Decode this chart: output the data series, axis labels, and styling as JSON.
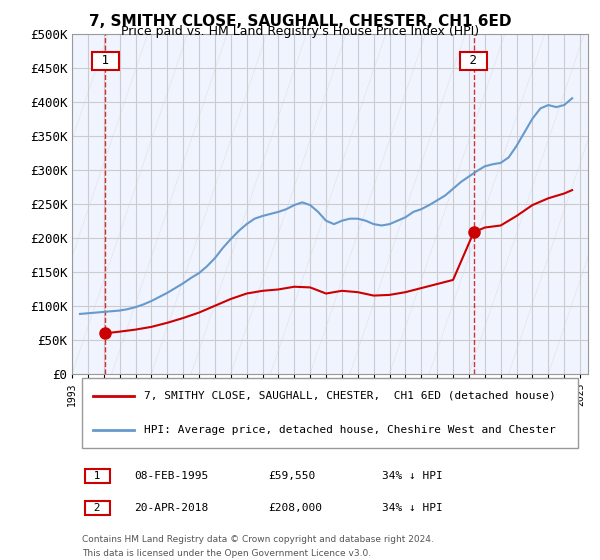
{
  "title": "7, SMITHY CLOSE, SAUGHALL, CHESTER, CH1 6ED",
  "subtitle": "Price paid vs. HM Land Registry's House Price Index (HPI)",
  "ylabel": "",
  "xlabel": "",
  "ylim": [
    0,
    500000
  ],
  "yticks": [
    0,
    50000,
    100000,
    150000,
    200000,
    250000,
    300000,
    350000,
    400000,
    450000,
    500000
  ],
  "ytick_labels": [
    "£0",
    "£50K",
    "£100K",
    "£150K",
    "£200K",
    "£250K",
    "£300K",
    "£350K",
    "£400K",
    "£450K",
    "£500K"
  ],
  "xlim_start": 1993.0,
  "xlim_end": 2025.5,
  "sale1_x": 1995.1,
  "sale1_y": 59550,
  "sale1_label": "1",
  "sale1_date": "08-FEB-1995",
  "sale1_price": "£59,550",
  "sale1_hpi": "34% ↓ HPI",
  "sale2_x": 2018.3,
  "sale2_y": 208000,
  "sale2_label": "2",
  "sale2_date": "20-APR-2018",
  "sale2_price": "£208,000",
  "sale2_hpi": "34% ↓ HPI",
  "property_line_color": "#cc0000",
  "hpi_line_color": "#6699cc",
  "vline_color": "#cc0000",
  "hatch_color": "#cccccc",
  "grid_color": "#cccccc",
  "background_color": "#ffffff",
  "plot_bg_color": "#f0f4ff",
  "legend_label1": "7, SMITHY CLOSE, SAUGHALL, CHESTER,  CH1 6ED (detached house)",
  "legend_label2": "HPI: Average price, detached house, Cheshire West and Chester",
  "footnote1": "Contains HM Land Registry data © Crown copyright and database right 2024.",
  "footnote2": "This data is licensed under the Open Government Licence v3.0.",
  "hpi_data_x": [
    1993.5,
    1994.0,
    1994.5,
    1995.0,
    1995.5,
    1996.0,
    1996.5,
    1997.0,
    1997.5,
    1998.0,
    1998.5,
    1999.0,
    1999.5,
    2000.0,
    2000.5,
    2001.0,
    2001.5,
    2002.0,
    2002.5,
    2003.0,
    2003.5,
    2004.0,
    2004.5,
    2005.0,
    2005.5,
    2006.0,
    2006.5,
    2007.0,
    2007.5,
    2008.0,
    2008.5,
    2009.0,
    2009.5,
    2010.0,
    2010.5,
    2011.0,
    2011.5,
    2012.0,
    2012.5,
    2013.0,
    2013.5,
    2014.0,
    2014.5,
    2015.0,
    2015.5,
    2016.0,
    2016.5,
    2017.0,
    2017.5,
    2018.0,
    2018.5,
    2019.0,
    2019.5,
    2020.0,
    2020.5,
    2021.0,
    2021.5,
    2022.0,
    2022.5,
    2023.0,
    2023.5,
    2024.0,
    2024.5
  ],
  "hpi_data_y": [
    88000,
    89000,
    90000,
    91000,
    92000,
    93000,
    95000,
    98000,
    102000,
    107000,
    113000,
    119000,
    126000,
    133000,
    141000,
    148000,
    158000,
    170000,
    185000,
    198000,
    210000,
    220000,
    228000,
    232000,
    235000,
    238000,
    242000,
    248000,
    252000,
    248000,
    238000,
    225000,
    220000,
    225000,
    228000,
    228000,
    225000,
    220000,
    218000,
    220000,
    225000,
    230000,
    238000,
    242000,
    248000,
    255000,
    262000,
    272000,
    282000,
    290000,
    298000,
    305000,
    308000,
    310000,
    318000,
    335000,
    355000,
    375000,
    390000,
    395000,
    392000,
    395000,
    405000
  ],
  "property_data_x": [
    1995.1,
    1996.0,
    1997.0,
    1998.0,
    1999.0,
    2000.0,
    2001.0,
    2002.0,
    2003.0,
    2004.0,
    2005.0,
    2006.0,
    2007.0,
    2008.0,
    2009.0,
    2010.0,
    2011.0,
    2012.0,
    2013.0,
    2014.0,
    2015.0,
    2016.0,
    2017.0,
    2018.3,
    2019.0,
    2020.0,
    2021.0,
    2022.0,
    2023.0,
    2024.0,
    2024.5
  ],
  "property_data_y": [
    59550,
    62000,
    65000,
    69000,
    75000,
    82000,
    90000,
    100000,
    110000,
    118000,
    122000,
    124000,
    128000,
    127000,
    118000,
    122000,
    120000,
    115000,
    116000,
    120000,
    126000,
    132000,
    138000,
    208000,
    215000,
    218000,
    232000,
    248000,
    258000,
    265000,
    270000
  ]
}
